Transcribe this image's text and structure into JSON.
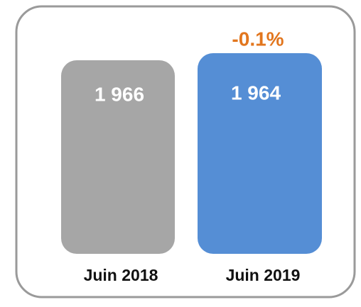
{
  "change": "-0.1%",
  "cards": [
    {
      "value": "1 966",
      "label": "Juin 2018"
    },
    {
      "value": "1 964",
      "label": "Juin 2019"
    }
  ]
}
